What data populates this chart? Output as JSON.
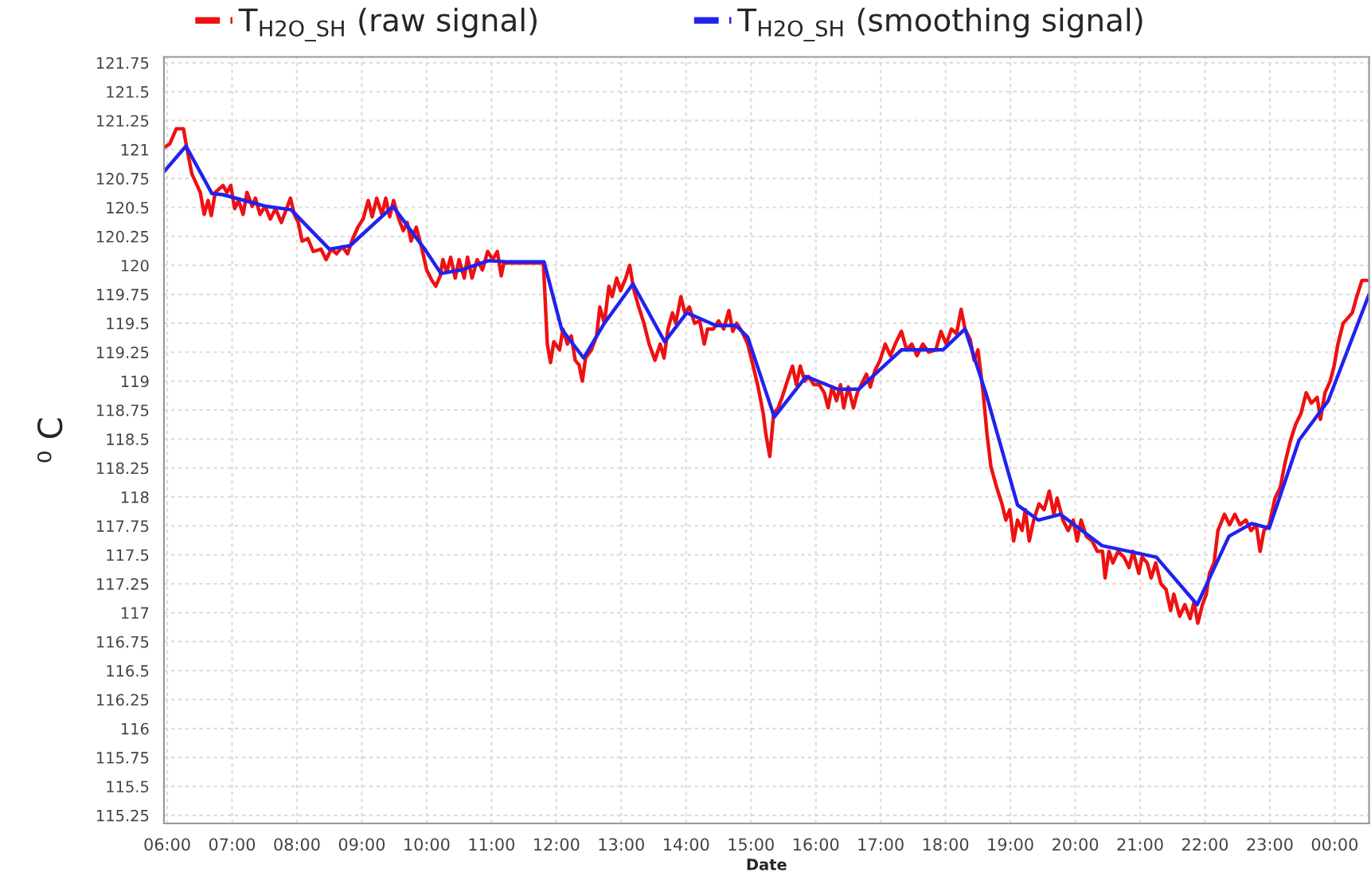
{
  "chart_data": {
    "type": "line",
    "xlabel": "Date",
    "ylabel": "⁰ C",
    "xlim": [
      5.95,
      24.53
    ],
    "ylim": [
      115.18,
      121.8
    ],
    "xticks": [
      {
        "value": 6,
        "label": "06:00"
      },
      {
        "value": 7,
        "label": "07:00"
      },
      {
        "value": 8,
        "label": "08:00"
      },
      {
        "value": 9,
        "label": "09:00"
      },
      {
        "value": 10,
        "label": "10:00"
      },
      {
        "value": 11,
        "label": "11:00"
      },
      {
        "value": 12,
        "label": "12:00"
      },
      {
        "value": 13,
        "label": "13:00"
      },
      {
        "value": 14,
        "label": "14:00"
      },
      {
        "value": 15,
        "label": "15:00"
      },
      {
        "value": 16,
        "label": "16:00"
      },
      {
        "value": 17,
        "label": "17:00"
      },
      {
        "value": 18,
        "label": "18:00"
      },
      {
        "value": 19,
        "label": "19:00"
      },
      {
        "value": 20,
        "label": "20:00"
      },
      {
        "value": 21,
        "label": "21:00"
      },
      {
        "value": 22,
        "label": "22:00"
      },
      {
        "value": 23,
        "label": "23:00"
      },
      {
        "value": 24,
        "label": "00:00"
      }
    ],
    "yticks": [
      115.25,
      115.5,
      115.75,
      116,
      116.25,
      116.5,
      116.75,
      117,
      117.25,
      117.5,
      117.75,
      118,
      118.25,
      118.5,
      118.75,
      119,
      119.25,
      119.5,
      119.75,
      120,
      120.25,
      120.5,
      120.75,
      121,
      121.25,
      121.5,
      121.75
    ],
    "grid": true,
    "legend": "top",
    "marker": "none",
    "series": [
      {
        "name": "T$_{H2O_SH}$ (raw signal)",
        "color": "#ee1111",
        "line_style": "solid",
        "x": [
          5.96,
          6.04,
          6.14,
          6.25,
          6.3,
          6.38,
          6.51,
          6.57,
          6.63,
          6.68,
          6.74,
          6.86,
          6.92,
          6.98,
          7.04,
          7.1,
          7.17,
          7.23,
          7.31,
          7.36,
          7.43,
          7.51,
          7.59,
          7.67,
          7.76,
          7.84,
          7.9,
          7.96,
          8.02,
          8.08,
          8.17,
          8.25,
          8.37,
          8.45,
          8.53,
          8.61,
          8.7,
          8.78,
          8.86,
          8.94,
          9.02,
          9.1,
          9.16,
          9.23,
          9.31,
          9.37,
          9.43,
          9.49,
          9.57,
          9.64,
          9.7,
          9.76,
          9.84,
          9.92,
          10.0,
          10.08,
          10.14,
          10.21,
          10.25,
          10.31,
          10.37,
          10.44,
          10.5,
          10.58,
          10.63,
          10.7,
          10.78,
          10.86,
          10.94,
          11.02,
          11.09,
          11.15,
          11.19,
          11.8,
          11.86,
          11.91,
          11.96,
          12.05,
          12.1,
          12.17,
          12.23,
          12.29,
          12.35,
          12.4,
          12.45,
          12.54,
          12.62,
          12.67,
          12.74,
          12.81,
          12.86,
          12.93,
          12.99,
          13.07,
          13.13,
          13.19,
          13.27,
          13.35,
          13.43,
          13.52,
          13.6,
          13.66,
          13.72,
          13.79,
          13.84,
          13.92,
          13.98,
          14.05,
          14.13,
          14.21,
          14.28,
          14.33,
          14.42,
          14.5,
          14.58,
          14.66,
          14.72,
          14.78,
          14.86,
          14.95,
          15.03,
          15.11,
          15.19,
          15.23,
          15.29,
          15.35,
          15.42,
          15.48,
          15.56,
          15.64,
          15.7,
          15.76,
          15.83,
          15.89,
          15.97,
          16.05,
          16.13,
          16.19,
          16.25,
          16.32,
          16.38,
          16.43,
          16.5,
          16.58,
          16.64,
          16.7,
          16.78,
          16.84,
          16.91,
          16.99,
          17.07,
          17.15,
          17.24,
          17.32,
          17.4,
          17.48,
          17.56,
          17.65,
          17.74,
          17.85,
          17.93,
          18.01,
          18.09,
          18.17,
          18.24,
          18.3,
          18.38,
          18.44,
          18.5,
          18.58,
          18.64,
          18.7,
          18.79,
          18.87,
          18.93,
          18.99,
          19.05,
          19.11,
          19.18,
          19.23,
          19.29,
          19.36,
          19.44,
          19.52,
          19.6,
          19.67,
          19.72,
          19.81,
          19.89,
          19.97,
          20.03,
          20.09,
          20.17,
          20.26,
          20.34,
          20.42,
          20.46,
          20.52,
          20.58,
          20.66,
          20.75,
          20.83,
          20.89,
          20.98,
          21.03,
          21.11,
          21.17,
          21.24,
          21.32,
          21.4,
          21.47,
          21.52,
          21.61,
          21.69,
          21.77,
          21.83,
          21.89,
          21.96,
          22.02,
          22.07,
          22.14,
          22.2,
          22.3,
          22.38,
          22.46,
          22.54,
          22.63,
          22.71,
          22.79,
          22.85,
          22.91,
          22.99,
          23.08,
          23.16,
          23.24,
          23.32,
          23.4,
          23.48,
          23.56,
          23.64,
          23.73,
          23.78,
          23.85,
          23.93,
          23.99,
          24.05,
          24.13,
          24.21,
          24.27,
          24.34,
          24.42,
          24.5
        ],
        "values": [
          121.02,
          121.05,
          121.18,
          121.18,
          121.02,
          120.79,
          120.63,
          120.44,
          120.56,
          120.43,
          120.63,
          120.69,
          120.63,
          120.69,
          120.49,
          120.56,
          120.44,
          120.63,
          120.51,
          120.58,
          120.44,
          120.51,
          120.4,
          120.49,
          120.37,
          120.49,
          120.58,
          120.44,
          120.37,
          120.21,
          120.23,
          120.12,
          120.14,
          120.05,
          120.14,
          120.1,
          120.16,
          120.1,
          120.23,
          120.33,
          120.4,
          120.56,
          120.42,
          120.58,
          120.44,
          120.58,
          120.42,
          120.56,
          120.4,
          120.3,
          120.37,
          120.21,
          120.33,
          120.16,
          119.96,
          119.87,
          119.82,
          119.91,
          120.05,
          119.94,
          120.07,
          119.89,
          120.05,
          119.89,
          120.07,
          119.89,
          120.05,
          119.96,
          120.12,
          120.05,
          120.12,
          119.91,
          120.02,
          120.02,
          119.32,
          119.16,
          119.34,
          119.27,
          119.45,
          119.32,
          119.39,
          119.18,
          119.14,
          119.0,
          119.2,
          119.27,
          119.39,
          119.64,
          119.5,
          119.82,
          119.73,
          119.89,
          119.78,
          119.89,
          120.0,
          119.8,
          119.64,
          119.5,
          119.32,
          119.18,
          119.32,
          119.2,
          119.45,
          119.59,
          119.5,
          119.73,
          119.59,
          119.64,
          119.5,
          119.52,
          119.32,
          119.45,
          119.45,
          119.52,
          119.45,
          119.61,
          119.43,
          119.5,
          119.43,
          119.32,
          119.14,
          118.95,
          118.72,
          118.54,
          118.35,
          118.72,
          118.77,
          118.86,
          119.0,
          119.13,
          118.97,
          119.13,
          119.0,
          119.04,
          118.97,
          118.97,
          118.9,
          118.77,
          118.95,
          118.83,
          118.97,
          118.77,
          118.95,
          118.77,
          118.9,
          118.97,
          119.06,
          118.95,
          119.09,
          119.18,
          119.32,
          119.22,
          119.34,
          119.43,
          119.27,
          119.32,
          119.22,
          119.32,
          119.25,
          119.27,
          119.43,
          119.32,
          119.45,
          119.41,
          119.62,
          119.45,
          119.36,
          119.18,
          119.27,
          118.9,
          118.54,
          118.26,
          118.08,
          117.94,
          117.8,
          117.89,
          117.62,
          117.8,
          117.71,
          117.89,
          117.62,
          117.8,
          117.94,
          117.89,
          118.05,
          117.85,
          117.99,
          117.8,
          117.71,
          117.8,
          117.62,
          117.8,
          117.66,
          117.62,
          117.53,
          117.53,
          117.3,
          117.53,
          117.43,
          117.53,
          117.48,
          117.39,
          117.53,
          117.34,
          117.48,
          117.43,
          117.3,
          117.43,
          117.25,
          117.2,
          117.02,
          117.16,
          116.97,
          117.07,
          116.95,
          117.09,
          116.91,
          117.07,
          117.16,
          117.34,
          117.43,
          117.71,
          117.85,
          117.76,
          117.85,
          117.76,
          117.8,
          117.71,
          117.76,
          117.53,
          117.71,
          117.76,
          117.99,
          118.08,
          118.31,
          118.49,
          118.63,
          118.72,
          118.9,
          118.81,
          118.86,
          118.67,
          118.9,
          119.0,
          119.13,
          119.32,
          119.5,
          119.55,
          119.59,
          119.73,
          119.87,
          119.87
        ]
      },
      {
        "name": "T$_{H2O_SH}$ (smoothing signal)",
        "color": "#2222ee",
        "line_style": "solid",
        "x": [
          5.95,
          6.29,
          6.69,
          6.86,
          7.52,
          7.91,
          8.5,
          8.82,
          9.48,
          9.97,
          10.22,
          10.53,
          10.95,
          11.27,
          11.81,
          12.08,
          12.42,
          12.74,
          13.18,
          13.67,
          14.01,
          14.46,
          14.77,
          14.95,
          15.36,
          15.85,
          16.34,
          16.66,
          17.32,
          17.96,
          18.3,
          18.62,
          19.11,
          19.43,
          19.77,
          20.41,
          21.25,
          21.88,
          22.37,
          22.72,
          22.99,
          23.45,
          23.9,
          24.53
        ],
        "values": [
          120.81,
          121.03,
          120.62,
          120.61,
          120.51,
          120.48,
          120.14,
          120.17,
          120.51,
          120.14,
          119.93,
          119.96,
          120.04,
          120.03,
          120.03,
          119.45,
          119.2,
          119.5,
          119.84,
          119.34,
          119.59,
          119.48,
          119.48,
          119.38,
          118.69,
          119.04,
          118.93,
          118.93,
          119.27,
          119.27,
          119.45,
          118.9,
          117.93,
          117.8,
          117.85,
          117.58,
          117.48,
          117.07,
          117.66,
          117.77,
          117.73,
          118.49,
          118.83,
          119.75
        ]
      }
    ]
  }
}
